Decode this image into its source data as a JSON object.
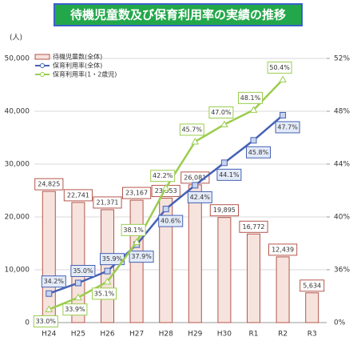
{
  "chart_data": {
    "type": "bar",
    "title": "待機児童数及び保育利用率の実績の推移",
    "y_unit_label": "(人)",
    "categories": [
      "H24",
      "H25",
      "H26",
      "H27",
      "H28",
      "H29",
      "H30",
      "R1",
      "R2",
      "R3"
    ],
    "series": [
      {
        "name": "待機児童数(全体)",
        "type": "bar",
        "color": "#b5564c",
        "values": [
          24825,
          22741,
          21371,
          23167,
          23553,
          26081,
          19895,
          16772,
          12439,
          5634
        ],
        "value_labels": [
          "24,825",
          "22,741",
          "21,371",
          "23,167",
          "23,553",
          "26,081",
          "19,895",
          "16,772",
          "12,439",
          "5,634"
        ]
      },
      {
        "name": "保育利用率(全体)",
        "type": "line",
        "axis": "y2",
        "color": "#4561b4",
        "values": [
          34.2,
          35.0,
          35.9,
          37.9,
          40.6,
          42.4,
          44.1,
          45.8,
          47.7,
          null
        ],
        "value_labels": [
          "34.2%",
          "35.0%",
          "35.9%",
          "37.9%",
          "40.6%",
          "42.4%",
          "44.1%",
          "45.8%",
          "47.7%",
          null
        ]
      },
      {
        "name": "保育利用率(1・2歳児)",
        "type": "line",
        "axis": "y2",
        "color": "#9acd4e",
        "values": [
          33.0,
          33.9,
          35.1,
          38.1,
          42.2,
          45.7,
          47.0,
          48.1,
          50.4,
          null
        ],
        "value_labels": [
          "33.0%",
          "33.9%",
          "35.1%",
          "38.1%",
          "42.2%",
          "45.7%",
          "47.0%",
          "48.1%",
          "50.4%",
          null
        ]
      }
    ],
    "ylim": [
      0,
      50000
    ],
    "yticks": [
      0,
      {
        "value": 10000,
        "label": "10,000"
      },
      {
        "value": 20000,
        "label": "20,000"
      },
      {
        "value": 30000,
        "label": "30,000"
      },
      {
        "value": 40000,
        "label": "40,000"
      },
      {
        "value": 50000,
        "label": "50,000"
      }
    ],
    "y2lim": [
      32,
      52
    ],
    "y2ticks": [
      {
        "value": 36,
        "label": "36%"
      },
      {
        "value": 40,
        "label": "40%"
      },
      {
        "value": 44,
        "label": "44%"
      },
      {
        "value": 48,
        "label": "48%"
      },
      {
        "value": 52,
        "label": "52%"
      }
    ],
    "y2_bottom_label": "0%",
    "grid": true,
    "legend": "upper left"
  }
}
